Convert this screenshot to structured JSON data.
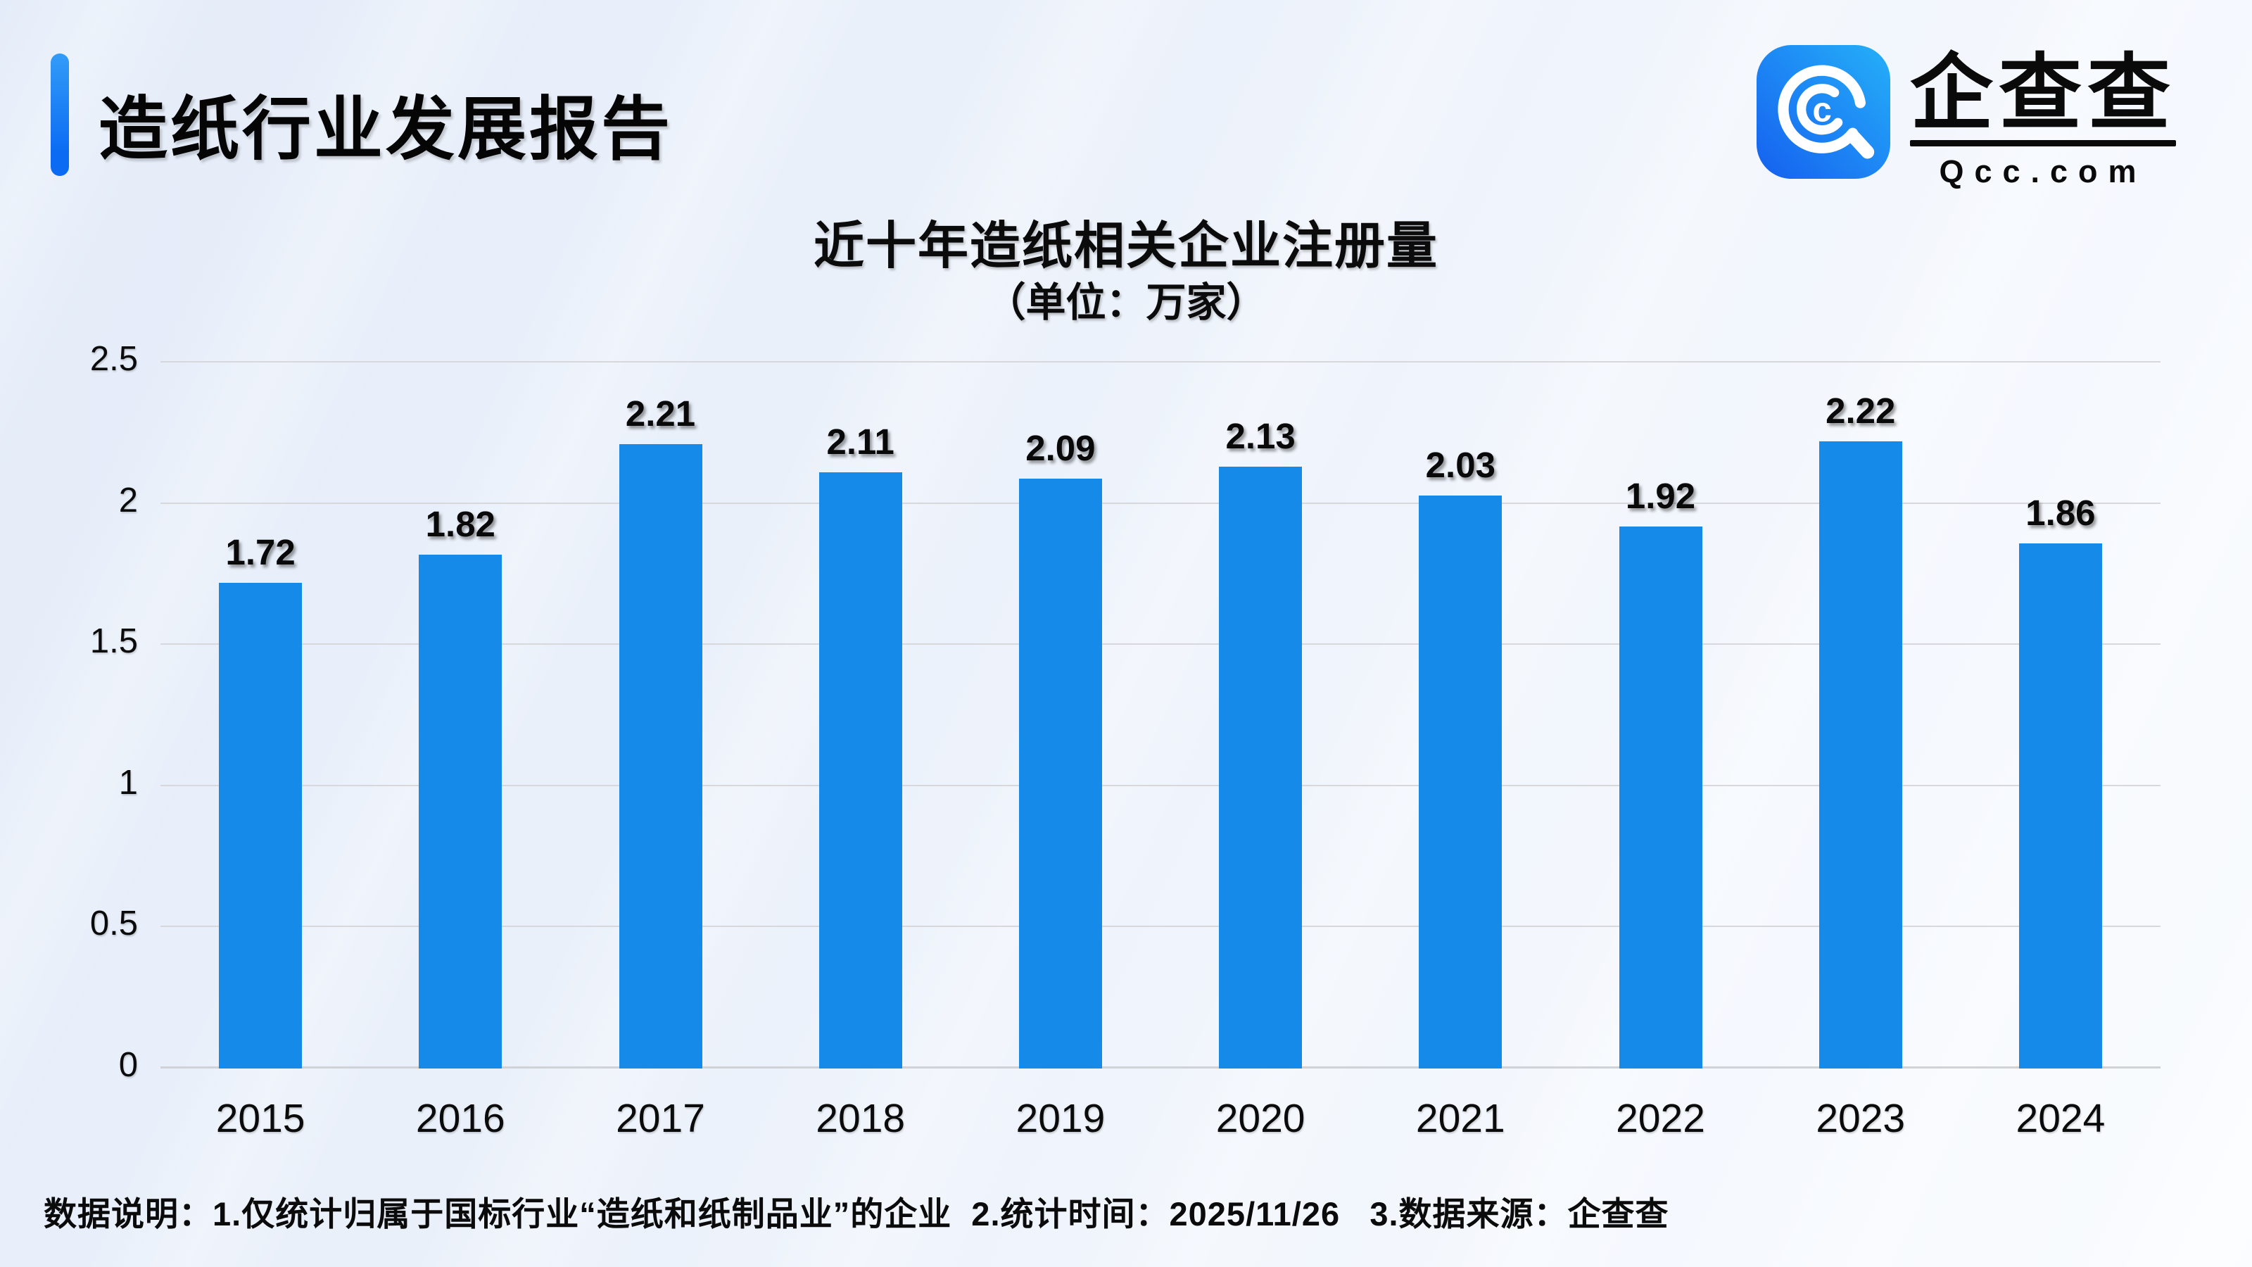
{
  "header": {
    "title": "造纸行业发展报告"
  },
  "logo": {
    "name": "企查查",
    "domain": "Qcc.com",
    "icon_letter": "c",
    "tile_gradient_start": "#1560ee",
    "tile_gradient_end": "#25b0f8"
  },
  "chart_data": {
    "type": "bar",
    "title": "近十年造纸相关企业注册量",
    "subtitle": "（单位：万家）",
    "unit": "万家",
    "categories": [
      "2015",
      "2016",
      "2017",
      "2018",
      "2019",
      "2020",
      "2021",
      "2022",
      "2023",
      "2024"
    ],
    "values": [
      1.72,
      1.82,
      2.21,
      2.11,
      2.09,
      2.13,
      2.03,
      1.92,
      2.22,
      1.86
    ],
    "ylim": [
      0,
      2.5
    ],
    "yticks": [
      "0",
      "0.5",
      "1",
      "1.5",
      "2",
      "2.5"
    ],
    "grid": true,
    "legend": "none",
    "bar_color": "#168AE8",
    "gridline_color": "#d6d8dc"
  },
  "footer": {
    "note": "数据说明：1.仅统计归属于国标行业“造纸和纸制品业”的企业  2.统计时间：2025/11/26   3.数据来源：企查查"
  }
}
